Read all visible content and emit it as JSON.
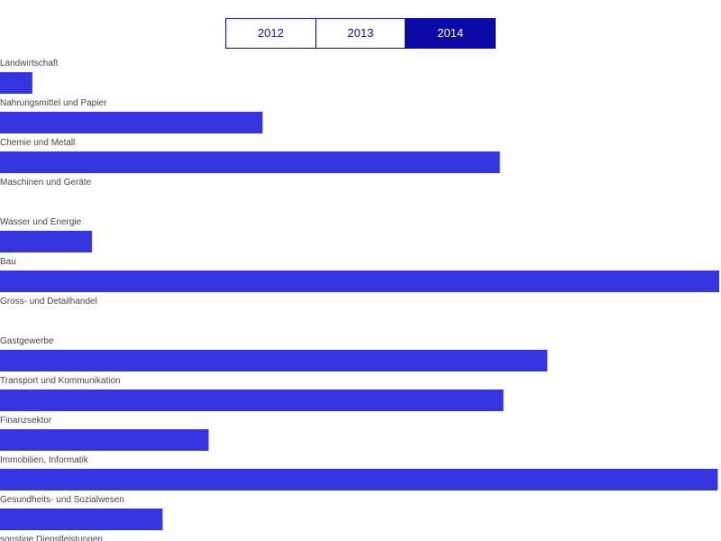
{
  "year_tabs": [
    {
      "label": "2012",
      "active": false
    },
    {
      "label": "2013",
      "active": false
    },
    {
      "label": "2014",
      "active": true
    }
  ],
  "colors": {
    "bar": "#3535e0",
    "tab_active_bg": "#0c0aa6",
    "tab_border": "#0c0aa6",
    "label": "#444444"
  },
  "chart_data": {
    "type": "bar",
    "orientation": "horizontal",
    "categories": [
      "Landwirtschaft",
      "Nahrungsmittel und Papier",
      "Chemie und Metall",
      "Maschinen und Geräte",
      "Wasser und Energie",
      "Bau",
      "Gross- und Detailhandel",
      "Gastgewerbe",
      "Transport und Kommunikation",
      "Finanzsektor",
      "Immobilien, Informatik",
      "Gesundheits- und Sozialwesen",
      "sonstige Dienstleistungen"
    ],
    "values": [
      4.5,
      36.5,
      69.5,
      0,
      12.8,
      100,
      0,
      76.1,
      70,
      29,
      99.8,
      22.6,
      null
    ],
    "xlim": [
      0,
      100
    ],
    "grid": false,
    "legend": "none",
    "title": "",
    "xlabel": "",
    "ylabel": ""
  }
}
